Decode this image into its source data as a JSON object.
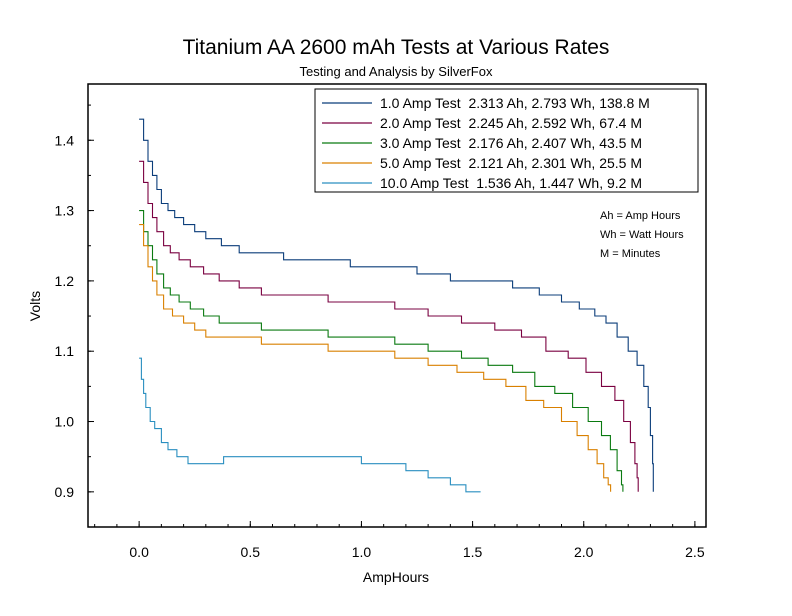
{
  "chart_data": {
    "type": "line",
    "title": "Titanium AA 2600 mAh Tests at Various Rates",
    "subtitle": "Testing and Analysis by SilverFox",
    "xlabel": "AmpHours",
    "ylabel": "Volts",
    "xlim": [
      -0.23,
      2.55
    ],
    "ylim": [
      0.85,
      1.48
    ],
    "xticks": [
      "0.0",
      "0.5",
      "1.0",
      "1.5",
      "2.0",
      "2.5"
    ],
    "xtick_values": [
      0,
      0.5,
      1.0,
      1.5,
      2.0,
      2.5
    ],
    "yticks": [
      "0.9",
      "1.0",
      "1.1",
      "1.2",
      "1.3",
      "1.4"
    ],
    "ytick_values": [
      0.9,
      1.0,
      1.1,
      1.2,
      1.3,
      1.4
    ],
    "grid": false,
    "legend_position": "top-right",
    "notes": [
      "Ah = Amp Hours",
      "Wh = Watt Hours",
      "M = Minutes"
    ],
    "series": [
      {
        "name": "1.0 Amp Test  2.313 Ah, 2.793 Wh, 138.8 M",
        "color": "#0b3d7a",
        "x": [
          0.0,
          0.02,
          0.04,
          0.06,
          0.08,
          0.1,
          0.13,
          0.16,
          0.2,
          0.25,
          0.3,
          0.37,
          0.45,
          0.54,
          0.65,
          0.8,
          0.95,
          1.1,
          1.25,
          1.4,
          1.55,
          1.68,
          1.8,
          1.9,
          1.98,
          2.05,
          2.1,
          2.15,
          2.2,
          2.24,
          2.27,
          2.29,
          2.3,
          2.31,
          2.313
        ],
        "y": [
          1.43,
          1.4,
          1.37,
          1.35,
          1.33,
          1.31,
          1.3,
          1.29,
          1.28,
          1.27,
          1.26,
          1.25,
          1.24,
          1.24,
          1.23,
          1.23,
          1.22,
          1.22,
          1.21,
          1.2,
          1.2,
          1.19,
          1.18,
          1.17,
          1.16,
          1.15,
          1.14,
          1.12,
          1.1,
          1.08,
          1.05,
          1.02,
          0.98,
          0.94,
          0.9
        ]
      },
      {
        "name": "2.0 Amp Test  2.245 Ah, 2.592 Wh, 67.4 M",
        "color": "#7a0040",
        "x": [
          0.0,
          0.02,
          0.04,
          0.06,
          0.08,
          0.11,
          0.14,
          0.18,
          0.23,
          0.29,
          0.36,
          0.45,
          0.55,
          0.7,
          0.85,
          1.0,
          1.15,
          1.3,
          1.45,
          1.6,
          1.72,
          1.83,
          1.93,
          2.01,
          2.08,
          2.14,
          2.18,
          2.21,
          2.23,
          2.24,
          2.245
        ],
        "y": [
          1.37,
          1.34,
          1.31,
          1.29,
          1.27,
          1.25,
          1.24,
          1.23,
          1.22,
          1.21,
          1.2,
          1.19,
          1.18,
          1.18,
          1.17,
          1.17,
          1.16,
          1.15,
          1.14,
          1.13,
          1.12,
          1.1,
          1.09,
          1.07,
          1.05,
          1.03,
          1.0,
          0.97,
          0.94,
          0.92,
          0.9
        ]
      },
      {
        "name": "3.0 Amp Test  2.176 Ah, 2.407 Wh, 43.5 M",
        "color": "#0a7a10",
        "x": [
          0.0,
          0.02,
          0.04,
          0.06,
          0.08,
          0.11,
          0.14,
          0.18,
          0.23,
          0.29,
          0.36,
          0.45,
          0.55,
          0.7,
          0.85,
          1.0,
          1.15,
          1.3,
          1.45,
          1.57,
          1.68,
          1.78,
          1.87,
          1.95,
          2.02,
          2.08,
          2.12,
          2.15,
          2.17,
          2.176
        ],
        "y": [
          1.3,
          1.27,
          1.25,
          1.23,
          1.21,
          1.19,
          1.18,
          1.17,
          1.16,
          1.15,
          1.14,
          1.14,
          1.13,
          1.13,
          1.12,
          1.12,
          1.11,
          1.1,
          1.09,
          1.08,
          1.07,
          1.05,
          1.04,
          1.02,
          1.0,
          0.98,
          0.96,
          0.93,
          0.91,
          0.9
        ]
      },
      {
        "name": "5.0 Amp Test  2.121 Ah, 2.301 Wh, 25.5 M",
        "color": "#d98000",
        "x": [
          0.0,
          0.02,
          0.04,
          0.06,
          0.08,
          0.11,
          0.15,
          0.2,
          0.25,
          0.3,
          0.4,
          0.55,
          0.7,
          0.85,
          1.0,
          1.15,
          1.3,
          1.43,
          1.55,
          1.65,
          1.74,
          1.82,
          1.9,
          1.97,
          2.02,
          2.06,
          2.09,
          2.11,
          2.121
        ],
        "y": [
          1.28,
          1.25,
          1.22,
          1.2,
          1.18,
          1.16,
          1.15,
          1.14,
          1.13,
          1.12,
          1.12,
          1.11,
          1.11,
          1.1,
          1.1,
          1.09,
          1.08,
          1.07,
          1.06,
          1.05,
          1.03,
          1.02,
          1.0,
          0.98,
          0.96,
          0.94,
          0.92,
          0.91,
          0.9
        ]
      },
      {
        "name": "10.0 Amp Test  1.536 Ah, 1.447 Wh, 9.2 M",
        "color": "#2a8fc0",
        "x": [
          0.0,
          0.01,
          0.02,
          0.03,
          0.05,
          0.07,
          0.1,
          0.13,
          0.17,
          0.22,
          0.3,
          0.38,
          0.5,
          0.7,
          0.9,
          1.0,
          1.1,
          1.2,
          1.3,
          1.4,
          1.47,
          1.536
        ],
        "y": [
          1.09,
          1.06,
          1.04,
          1.02,
          1.0,
          0.99,
          0.97,
          0.96,
          0.95,
          0.94,
          0.94,
          0.95,
          0.95,
          0.95,
          0.95,
          0.94,
          0.94,
          0.93,
          0.92,
          0.91,
          0.9,
          0.9
        ]
      }
    ]
  }
}
